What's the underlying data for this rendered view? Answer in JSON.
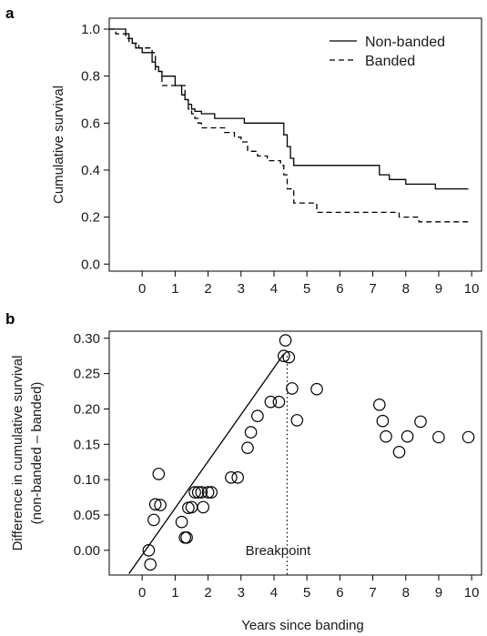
{
  "chart_data": [
    {
      "panel": "a",
      "type": "line",
      "step": true,
      "xlabel": "",
      "ylabel": "Cumulative survival",
      "xlim": [
        -1,
        10.3
      ],
      "ylim": [
        -0.03,
        1.0
      ],
      "xticks": [
        0,
        1,
        2,
        3,
        4,
        5,
        6,
        7,
        8,
        9,
        10
      ],
      "yticks": [
        0.0,
        0.2,
        0.4,
        0.6,
        0.8,
        1.0
      ],
      "ytick_labels": [
        "0.0",
        "0.2",
        "0.4",
        "0.6",
        "0.8",
        "1.0"
      ],
      "grid": false,
      "legend_position": "top-right",
      "series": [
        {
          "name": "Non-banded",
          "line_style": "solid",
          "x": [
            -1.0,
            -0.6,
            -0.5,
            -0.4,
            -0.3,
            -0.2,
            0.0,
            0.15,
            0.3,
            0.4,
            0.5,
            0.6,
            0.9,
            1.0,
            1.2,
            1.3,
            1.4,
            1.5,
            1.6,
            1.7,
            1.8,
            1.9,
            2.0,
            2.2,
            3.0,
            3.1,
            4.2,
            4.3,
            4.4,
            4.5,
            4.6,
            7.1,
            7.2,
            7.5,
            8.0,
            8.9,
            9.9
          ],
          "y": [
            1.0,
            1.0,
            0.98,
            0.96,
            0.94,
            0.92,
            0.9,
            0.9,
            0.86,
            0.84,
            0.82,
            0.8,
            0.8,
            0.76,
            0.72,
            0.7,
            0.68,
            0.66,
            0.65,
            0.65,
            0.64,
            0.64,
            0.64,
            0.62,
            0.62,
            0.6,
            0.6,
            0.55,
            0.5,
            0.45,
            0.42,
            0.42,
            0.38,
            0.36,
            0.34,
            0.32,
            0.32
          ]
        },
        {
          "name": "Banded",
          "line_style": "dashed",
          "x": [
            -1.0,
            -0.8,
            -0.5,
            -0.4,
            -0.1,
            0.3,
            0.4,
            0.6,
            1.1,
            1.3,
            1.4,
            1.5,
            1.6,
            1.7,
            1.8,
            2.0,
            2.5,
            2.8,
            3.0,
            3.2,
            3.5,
            3.8,
            4.2,
            4.3,
            4.4,
            4.6,
            5.0,
            5.3,
            7.6,
            7.8,
            8.1,
            8.4,
            9.9
          ],
          "y": [
            1.0,
            0.98,
            0.96,
            0.94,
            0.92,
            0.9,
            0.82,
            0.76,
            0.76,
            0.7,
            0.66,
            0.64,
            0.62,
            0.6,
            0.58,
            0.58,
            0.56,
            0.54,
            0.52,
            0.48,
            0.46,
            0.44,
            0.42,
            0.38,
            0.32,
            0.26,
            0.26,
            0.22,
            0.22,
            0.2,
            0.2,
            0.18,
            0.18
          ]
        }
      ]
    },
    {
      "panel": "b",
      "type": "scatter",
      "xlabel": "Years since banding",
      "ylabel": "Difference in cumulative survival",
      "ylabel2": "(non-banded – banded)",
      "xlim": [
        -1,
        10.3
      ],
      "ylim": [
        -0.035,
        0.31
      ],
      "xticks": [
        0,
        1,
        2,
        3,
        4,
        5,
        6,
        7,
        8,
        9,
        10
      ],
      "yticks": [
        0.0,
        0.05,
        0.1,
        0.15,
        0.2,
        0.25,
        0.3
      ],
      "ytick_labels": [
        "0.00",
        "0.05",
        "0.10",
        "0.15",
        "0.20",
        "0.25",
        "0.30"
      ],
      "grid": false,
      "annotation": "Breakpoint",
      "breakpoint_x": 4.4,
      "fit_line": {
        "x": [
          -0.4,
          4.3
        ],
        "y": [
          -0.033,
          0.278
        ]
      },
      "points": {
        "x": [
          0.2,
          0.25,
          0.35,
          0.4,
          0.5,
          0.55,
          1.2,
          1.3,
          1.35,
          1.4,
          1.5,
          1.6,
          1.7,
          1.8,
          1.85,
          2.0,
          2.1,
          2.7,
          2.9,
          3.2,
          3.3,
          3.5,
          3.9,
          4.15,
          4.3,
          4.35,
          4.45,
          4.55,
          4.7,
          5.3,
          7.2,
          7.3,
          7.4,
          7.8,
          8.05,
          8.45,
          9.0,
          9.9
        ],
        "y": [
          0.0,
          -0.02,
          0.043,
          0.065,
          0.108,
          0.064,
          0.04,
          0.018,
          0.018,
          0.06,
          0.061,
          0.082,
          0.082,
          0.082,
          0.061,
          0.082,
          0.082,
          0.103,
          0.103,
          0.145,
          0.167,
          0.19,
          0.21,
          0.21,
          0.275,
          0.297,
          0.273,
          0.229,
          0.184,
          0.228,
          0.206,
          0.183,
          0.161,
          0.139,
          0.161,
          0.182,
          0.16,
          0.16
        ]
      }
    }
  ]
}
